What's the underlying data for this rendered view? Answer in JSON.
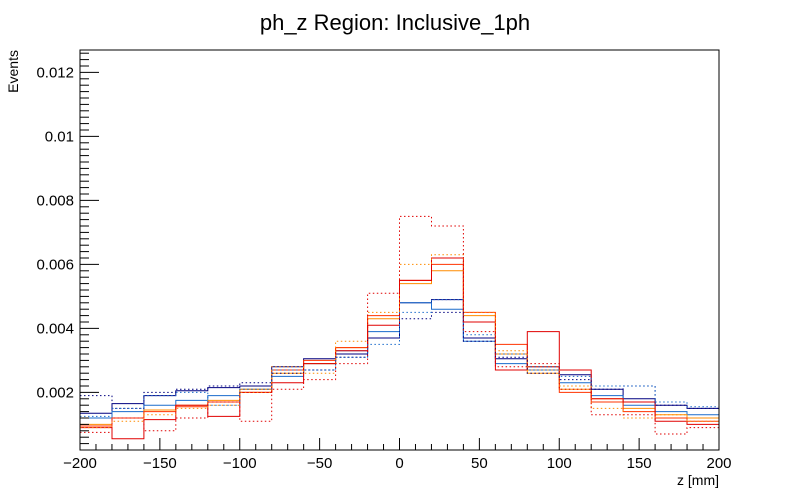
{
  "chart_data": {
    "type": "histogram",
    "title": "ph_z Region: Inclusive_1ph",
    "xlabel": "z [mm]",
    "ylabel": "Events",
    "xlim": [
      -200,
      200
    ],
    "ylim": [
      0.0002,
      0.0127
    ],
    "grid": false,
    "legend": "none",
    "bin_edges": [
      -200,
      -180,
      -160,
      -140,
      -120,
      -100,
      -80,
      -60,
      -40,
      -20,
      0,
      20,
      40,
      60,
      80,
      100,
      120,
      140,
      160,
      180,
      200
    ],
    "x_ticks": [
      -200,
      -150,
      -100,
      -50,
      0,
      50,
      100,
      150,
      200
    ],
    "x_tick_labels": [
      "−200",
      "−150",
      "−100",
      "−50",
      "0",
      "50",
      "100",
      "150",
      "200"
    ],
    "y_ticks": [
      0.002,
      0.004,
      0.006,
      0.008,
      0.01,
      0.012
    ],
    "y_tick_labels": [
      "0.002",
      "0.004",
      "0.006",
      "0.008",
      "0.01",
      "0.012"
    ],
    "series": [
      {
        "color": "#000080",
        "style": "solid",
        "values": [
          0.00135,
          0.00165,
          0.0019,
          0.00205,
          0.00215,
          0.0022,
          0.0028,
          0.00305,
          0.0032,
          0.0037,
          0.0048,
          0.0049,
          0.0037,
          0.00305,
          0.0028,
          0.00255,
          0.0021,
          0.0018,
          0.0016,
          0.0015
        ]
      },
      {
        "color": "#1a6bcc",
        "style": "solid",
        "values": [
          0.0012,
          0.0014,
          0.0016,
          0.00175,
          0.0019,
          0.0021,
          0.0025,
          0.0029,
          0.0033,
          0.0039,
          0.0048,
          0.0046,
          0.0036,
          0.0029,
          0.0027,
          0.0023,
          0.0019,
          0.0016,
          0.0014,
          0.0013
        ]
      },
      {
        "color": "#ff8c00",
        "style": "solid",
        "values": [
          0.001,
          0.0012,
          0.00145,
          0.0016,
          0.00175,
          0.0021,
          0.0026,
          0.0029,
          0.0034,
          0.0043,
          0.0054,
          0.0058,
          0.0044,
          0.0032,
          0.0026,
          0.0021,
          0.0018,
          0.0015,
          0.0013,
          0.0012
        ]
      },
      {
        "color": "#ff3300",
        "style": "solid",
        "values": [
          0.00095,
          0.0012,
          0.0014,
          0.00155,
          0.0017,
          0.002,
          0.0027,
          0.003,
          0.0034,
          0.0044,
          0.0055,
          0.006,
          0.0045,
          0.0035,
          0.0028,
          0.002,
          0.0017,
          0.0014,
          0.0012,
          0.0011
        ]
      },
      {
        "color": "#e00000",
        "style": "solid",
        "values": [
          0.0009,
          0.00055,
          0.00115,
          0.0016,
          0.00125,
          0.002,
          0.0023,
          0.0029,
          0.0033,
          0.0041,
          0.0055,
          0.0062,
          0.0042,
          0.0027,
          0.0039,
          0.0027,
          0.0018,
          0.0017,
          0.0011,
          0.001
        ]
      },
      {
        "color": "#000080",
        "style": "dotted",
        "values": [
          0.0019,
          0.0015,
          0.002,
          0.0021,
          0.0022,
          0.0023,
          0.0026,
          0.0027,
          0.0031,
          0.0037,
          0.0043,
          0.0045,
          0.0036,
          0.0031,
          0.0026,
          0.0024,
          0.0021,
          0.0022,
          0.0016,
          0.0015
        ]
      },
      {
        "color": "#1a6bcc",
        "style": "dotted",
        "values": [
          0.00125,
          0.0015,
          0.0019,
          0.002,
          0.0016,
          0.0021,
          0.0027,
          0.0027,
          0.0031,
          0.0035,
          0.0045,
          0.0049,
          0.0038,
          0.0032,
          0.0028,
          0.0025,
          0.0022,
          0.0022,
          0.0017,
          0.00155
        ]
      },
      {
        "color": "#ff8c00",
        "style": "dotted",
        "values": [
          0.0009,
          0.0011,
          0.0013,
          0.0015,
          0.0016,
          0.002,
          0.0028,
          0.0026,
          0.0036,
          0.0045,
          0.006,
          0.0063,
          0.0045,
          0.0033,
          0.0027,
          0.0022,
          0.0015,
          0.0012,
          0.0013,
          0.0011
        ]
      },
      {
        "color": "#e00000",
        "style": "dotted",
        "values": [
          0.00075,
          0.0012,
          0.0008,
          0.0012,
          0.0017,
          0.0011,
          0.0021,
          0.0024,
          0.0029,
          0.0051,
          0.0075,
          0.0072,
          0.0039,
          0.0028,
          0.0029,
          0.0021,
          0.0013,
          0.0013,
          0.0007,
          0.0009
        ]
      }
    ]
  }
}
